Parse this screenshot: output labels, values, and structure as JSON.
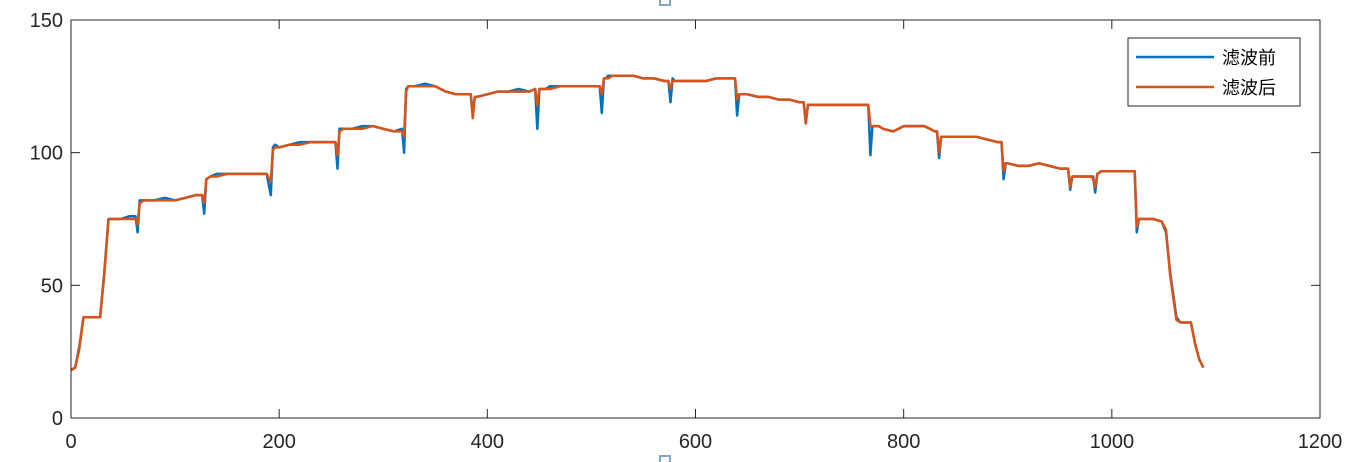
{
  "chart_data": {
    "type": "line",
    "title": "",
    "xlabel": "",
    "ylabel": "",
    "xlim": [
      0,
      1200
    ],
    "ylim": [
      0,
      150
    ],
    "xticks": [
      0,
      200,
      400,
      600,
      800,
      1000,
      1200
    ],
    "yticks": [
      0,
      50,
      100,
      150
    ],
    "grid": false,
    "legend_position": "top-right",
    "series": [
      {
        "name": "滤波前",
        "color": "#0072BD",
        "x": [
          0,
          4,
          8,
          12,
          20,
          28,
          32,
          36,
          40,
          48,
          56,
          62,
          64,
          66,
          70,
          80,
          90,
          100,
          110,
          120,
          126,
          128,
          130,
          134,
          140,
          150,
          160,
          170,
          180,
          188,
          192,
          194,
          196,
          200,
          210,
          220,
          230,
          240,
          250,
          254,
          256,
          258,
          262,
          270,
          280,
          290,
          300,
          310,
          318,
          320,
          322,
          324,
          330,
          340,
          350,
          360,
          370,
          380,
          384,
          386,
          388,
          390,
          400,
          410,
          420,
          430,
          440,
          446,
          448,
          450,
          452,
          456,
          460,
          470,
          480,
          490,
          500,
          508,
          510,
          512,
          514,
          516,
          520,
          530,
          540,
          550,
          560,
          570,
          574,
          576,
          578,
          580,
          590,
          600,
          610,
          620,
          630,
          638,
          640,
          642,
          644,
          650,
          660,
          670,
          680,
          690,
          700,
          704,
          706,
          708,
          712,
          720,
          730,
          740,
          750,
          760,
          766,
          768,
          770,
          772,
          776,
          780,
          790,
          800,
          810,
          820,
          830,
          832,
          834,
          836,
          840,
          850,
          860,
          870,
          880,
          890,
          894,
          896,
          898,
          900,
          910,
          920,
          930,
          940,
          950,
          958,
          960,
          962,
          964,
          970,
          980,
          982,
          984,
          986,
          990,
          1000,
          1010,
          1018,
          1020,
          1022,
          1024,
          1026,
          1030,
          1040,
          1048,
          1052,
          1056,
          1062,
          1066,
          1070,
          1076,
          1080,
          1084,
          1088
        ],
        "y": [
          18,
          19,
          27,
          38,
          38,
          38,
          55,
          75,
          75,
          75,
          76,
          76,
          70,
          82,
          82,
          82,
          83,
          82,
          83,
          84,
          84,
          77,
          90,
          91,
          92,
          92,
          92,
          92,
          92,
          92,
          84,
          102,
          103,
          102,
          103,
          104,
          104,
          104,
          104,
          104,
          94,
          109,
          109,
          109,
          110,
          110,
          109,
          108,
          109,
          100,
          124,
          125,
          125,
          126,
          125,
          123,
          122,
          122,
          122,
          115,
          121,
          121,
          122,
          123,
          123,
          124,
          123,
          124,
          109,
          124,
          124,
          124,
          125,
          125,
          125,
          125,
          125,
          125,
          115,
          128,
          128,
          129,
          129,
          129,
          129,
          128,
          128,
          127,
          127,
          119,
          128,
          127,
          127,
          127,
          127,
          128,
          128,
          128,
          114,
          122,
          122,
          122,
          121,
          121,
          120,
          120,
          119,
          119,
          111,
          118,
          118,
          118,
          118,
          118,
          118,
          118,
          118,
          99,
          110,
          110,
          110,
          109,
          108,
          110,
          110,
          110,
          108,
          108,
          98,
          106,
          106,
          106,
          106,
          106,
          105,
          104,
          104,
          90,
          96,
          96,
          95,
          95,
          96,
          95,
          94,
          94,
          86,
          91,
          91,
          91,
          91,
          91,
          85,
          92,
          93,
          93,
          93,
          93,
          93,
          93,
          70,
          75,
          75,
          75,
          74,
          70,
          55,
          38,
          36,
          36,
          36,
          28,
          22,
          19
        ]
      },
      {
        "name": "滤波后",
        "color": "#D95319",
        "x": [
          0,
          4,
          8,
          12,
          20,
          28,
          32,
          36,
          40,
          48,
          56,
          62,
          64,
          66,
          70,
          80,
          90,
          100,
          110,
          120,
          126,
          128,
          130,
          134,
          140,
          150,
          160,
          170,
          180,
          188,
          192,
          194,
          196,
          200,
          210,
          220,
          230,
          240,
          250,
          254,
          256,
          258,
          262,
          270,
          280,
          290,
          300,
          310,
          318,
          320,
          322,
          324,
          330,
          340,
          350,
          360,
          370,
          380,
          384,
          386,
          388,
          390,
          400,
          410,
          420,
          430,
          440,
          446,
          448,
          450,
          452,
          456,
          460,
          470,
          480,
          490,
          500,
          508,
          510,
          512,
          514,
          516,
          520,
          530,
          540,
          550,
          560,
          570,
          574,
          576,
          578,
          580,
          590,
          600,
          610,
          620,
          630,
          638,
          640,
          642,
          644,
          650,
          660,
          670,
          680,
          690,
          700,
          704,
          706,
          708,
          712,
          720,
          730,
          740,
          750,
          760,
          766,
          768,
          770,
          772,
          776,
          780,
          790,
          800,
          810,
          820,
          830,
          832,
          834,
          836,
          840,
          850,
          860,
          870,
          880,
          890,
          894,
          896,
          898,
          900,
          910,
          920,
          930,
          940,
          950,
          958,
          960,
          962,
          964,
          970,
          980,
          982,
          984,
          986,
          990,
          1000,
          1010,
          1018,
          1020,
          1022,
          1024,
          1026,
          1030,
          1040,
          1048,
          1052,
          1056,
          1062,
          1066,
          1070,
          1076,
          1080,
          1084,
          1088
        ],
        "y": [
          18,
          19,
          26,
          38,
          38,
          38,
          54,
          75,
          75,
          75,
          75,
          75,
          73,
          81,
          82,
          82,
          82,
          82,
          83,
          84,
          84,
          81,
          90,
          91,
          91,
          92,
          92,
          92,
          92,
          92,
          89,
          101,
          102,
          102,
          103,
          103,
          104,
          104,
          104,
          104,
          99,
          108,
          109,
          109,
          109,
          110,
          109,
          108,
          108,
          106,
          123,
          125,
          125,
          125,
          125,
          123,
          122,
          122,
          122,
          113,
          121,
          121,
          122,
          123,
          123,
          123,
          123,
          124,
          118,
          124,
          124,
          124,
          124,
          125,
          125,
          125,
          125,
          125,
          122,
          128,
          128,
          128,
          129,
          129,
          129,
          128,
          128,
          127,
          127,
          124,
          127,
          127,
          127,
          127,
          127,
          128,
          128,
          128,
          120,
          122,
          122,
          122,
          121,
          121,
          120,
          120,
          119,
          119,
          111,
          118,
          118,
          118,
          118,
          118,
          118,
          118,
          118,
          110,
          110,
          110,
          110,
          109,
          108,
          110,
          110,
          110,
          108,
          108,
          100,
          106,
          106,
          106,
          106,
          106,
          105,
          104,
          104,
          93,
          96,
          96,
          95,
          95,
          96,
          95,
          94,
          94,
          87,
          91,
          91,
          91,
          91,
          90,
          87,
          92,
          93,
          93,
          93,
          93,
          93,
          93,
          72,
          75,
          75,
          75,
          74,
          71,
          54,
          37,
          36,
          36,
          36,
          28,
          22,
          19
        ]
      }
    ]
  }
}
